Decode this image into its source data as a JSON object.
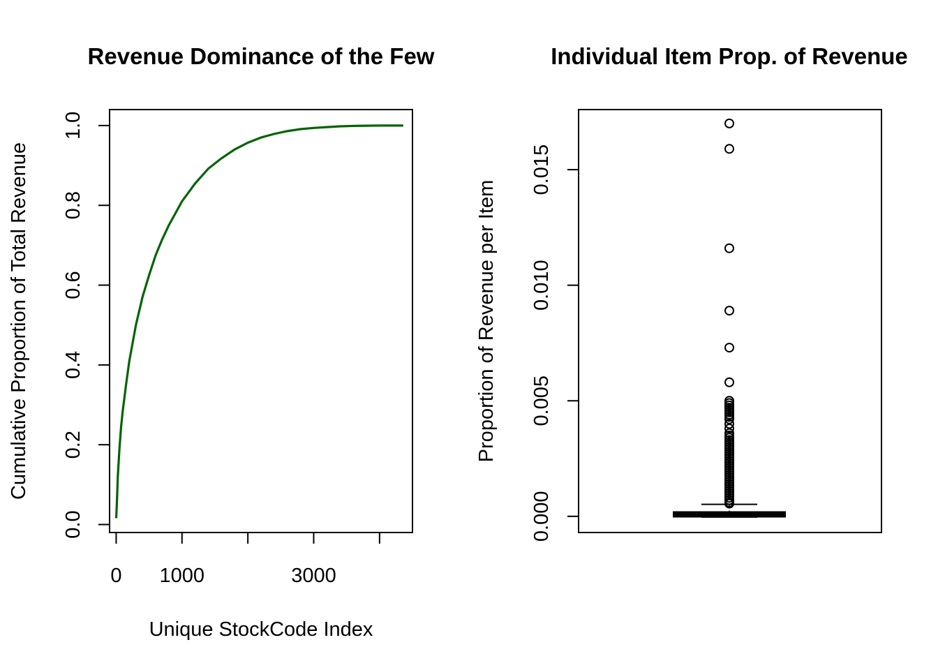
{
  "chart_data": [
    {
      "type": "line",
      "title": "Revenue Dominance of the Few",
      "xlabel": "Unique StockCode Index",
      "ylabel": "Cumulative Proportion of Total Revenue",
      "xlim": [
        -100,
        4500
      ],
      "ylim": [
        -0.02,
        1.04
      ],
      "xticks": [
        0,
        1000,
        2000,
        3000,
        4000
      ],
      "xtick_labels": [
        "0",
        "1000",
        "",
        "3000",
        ""
      ],
      "yticks": [
        0.0,
        0.2,
        0.4,
        0.6,
        0.8,
        1.0
      ],
      "ytick_labels": [
        "0.0",
        "0.2",
        "0.4",
        "0.6",
        "0.8",
        "1.0"
      ],
      "color": "#006400",
      "series": [
        {
          "x": [
            1,
            10,
            25,
            50,
            75,
            100,
            150,
            200,
            300,
            400,
            500,
            600,
            700,
            800,
            900,
            1000,
            1200,
            1400,
            1600,
            1800,
            2000,
            2200,
            2400,
            2600,
            2800,
            3000,
            3200,
            3400,
            3600,
            3800,
            4000,
            4200,
            4360
          ],
          "y": [
            0.016,
            0.05,
            0.12,
            0.19,
            0.245,
            0.285,
            0.35,
            0.41,
            0.5,
            0.57,
            0.625,
            0.675,
            0.715,
            0.75,
            0.78,
            0.81,
            0.855,
            0.892,
            0.918,
            0.94,
            0.957,
            0.97,
            0.979,
            0.986,
            0.991,
            0.994,
            0.996,
            0.998,
            0.999,
            0.9995,
            1.0,
            1.0,
            1.0
          ]
        }
      ]
    },
    {
      "type": "box",
      "title": "Individual Item Prop. of Revenue",
      "xlabel": "",
      "ylabel": "Proportion of Revenue per Item",
      "ylim": [
        -0.0007,
        0.0176
      ],
      "yticks": [
        0.0,
        0.005,
        0.01,
        0.015
      ],
      "ytick_labels": [
        "0.000",
        "0.005",
        "0.010",
        "0.015"
      ],
      "box": {
        "min": 0.0,
        "q1": 3e-05,
        "median": 6e-05,
        "q3": 0.00013,
        "whisker_high": 0.00052
      },
      "outliers": [
        0.017,
        0.0159,
        0.0116,
        0.0089,
        0.0073,
        0.0058,
        0.005,
        0.0049,
        0.0048,
        0.0047,
        0.0046,
        0.0045,
        0.0044,
        0.0043,
        0.0042,
        0.004,
        0.0038,
        0.0036,
        0.0035,
        0.0034,
        0.0033,
        0.0032,
        0.0031,
        0.003,
        0.0029,
        0.0028,
        0.0027,
        0.0026,
        0.0025,
        0.0024,
        0.0023,
        0.0022,
        0.0021,
        0.002,
        0.0019,
        0.0018,
        0.0017,
        0.0016,
        0.0015,
        0.0014,
        0.0013,
        0.0012,
        0.0011,
        0.001,
        0.0009,
        0.0008,
        0.0007,
        0.0006,
        0.00055
      ]
    }
  ]
}
